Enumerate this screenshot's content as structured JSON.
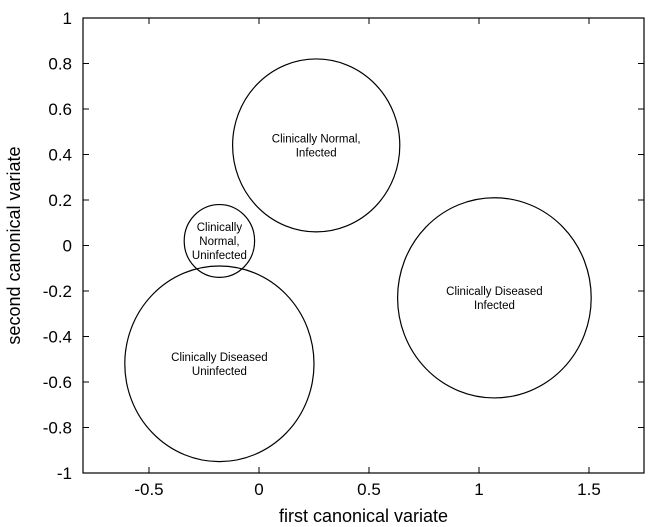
{
  "chart_data": {
    "type": "scatter",
    "title": "",
    "xlabel": "first canonical variate",
    "ylabel": "second canonical variate",
    "xlim": [
      -0.8,
      1.75
    ],
    "ylim": [
      -1,
      1
    ],
    "grid": false,
    "x_ticks": [
      -0.5,
      0,
      0.5,
      1,
      1.5
    ],
    "x_tick_labels": [
      "-0.5",
      "0",
      "0.5",
      "1",
      "1.5"
    ],
    "y_ticks": [
      -1,
      -0.8,
      -0.6,
      -0.4,
      -0.2,
      0,
      0.2,
      0.4,
      0.6,
      0.8,
      1
    ],
    "y_tick_labels": [
      "-1",
      "-0.8",
      "-0.6",
      "-0.4",
      "-0.2",
      "0",
      "0.2",
      "0.4",
      "0.6",
      "0.8",
      "1"
    ],
    "groups": [
      {
        "label_lines": [
          "Clinically Normal,",
          "Infected"
        ],
        "cx": 0.26,
        "cy": 0.44,
        "r": 0.38
      },
      {
        "label_lines": [
          "Clinically",
          "Normal,",
          "Uninfected"
        ],
        "cx": -0.18,
        "cy": 0.02,
        "r": 0.16
      },
      {
        "label_lines": [
          "Clinically Diseased",
          "Infected"
        ],
        "cx": 1.07,
        "cy": -0.23,
        "r": 0.44
      },
      {
        "label_lines": [
          "Clinically Diseased",
          "Uninfected"
        ],
        "cx": -0.18,
        "cy": -0.52,
        "r": 0.43
      }
    ]
  }
}
